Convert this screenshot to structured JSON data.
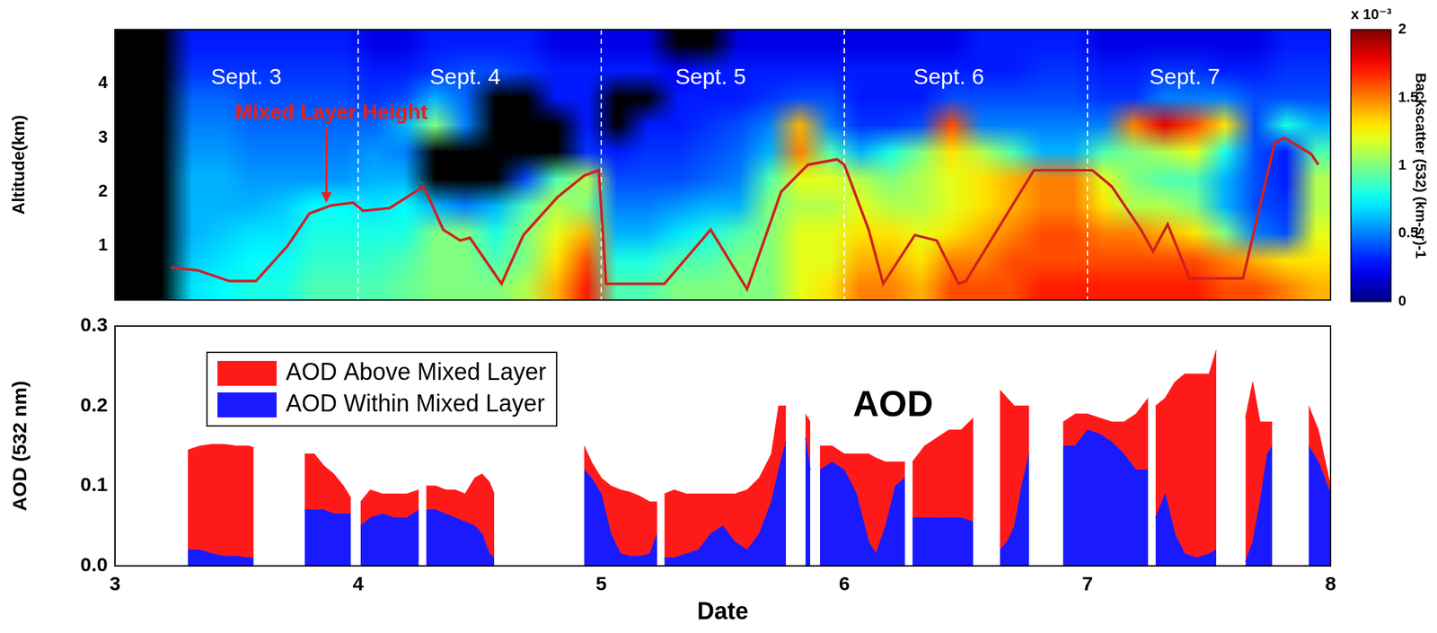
{
  "chart_data": [
    {
      "type": "heatmap",
      "y_label": "Altitude(km)",
      "xlim": [
        3,
        8
      ],
      "ylim": [
        0,
        5
      ],
      "yticks": [
        1,
        2,
        3,
        4
      ],
      "tick_labels": "y",
      "grid": false,
      "cells": [
        [
          null,
          null,
          0.3,
          0.3,
          0.3,
          0.3,
          0.3,
          0.3,
          0.2,
          0.2,
          0.3,
          0.3,
          0.3,
          0.3,
          0.2,
          0.2,
          0.2,
          0.2,
          null,
          null,
          0.2,
          0.2,
          0.2,
          0.2,
          0.2,
          0.2,
          0.2,
          0.2,
          0.3,
          0.3,
          0.3,
          0.3,
          0.2,
          0.2,
          0.2,
          0.2,
          0.2,
          0.2,
          0.3,
          0.3
        ],
        [
          null,
          null,
          0.35,
          0.35,
          0.35,
          0.35,
          0.35,
          0.35,
          0.3,
          0.3,
          0.35,
          0.4,
          0.4,
          0.35,
          0.3,
          0.3,
          0.3,
          0.3,
          0.25,
          0.3,
          0.3,
          0.3,
          0.3,
          0.3,
          0.3,
          0.3,
          0.3,
          0.3,
          0.3,
          0.3,
          0.35,
          0.35,
          0.3,
          0.3,
          0.35,
          0.35,
          0.3,
          0.3,
          0.35,
          0.35
        ],
        [
          null,
          null,
          0.45,
          0.45,
          0.4,
          0.4,
          0.4,
          0.4,
          0.35,
          0.4,
          0.6,
          0.45,
          null,
          null,
          0.3,
          0.3,
          null,
          null,
          0.3,
          0.3,
          0.3,
          0.35,
          0.4,
          0.4,
          0.3,
          0.3,
          0.3,
          0.4,
          0.4,
          0.4,
          0.4,
          0.4,
          0.35,
          0.35,
          0.5,
          0.5,
          0.5,
          0.4,
          0.4,
          0.4
        ],
        [
          null,
          null,
          0.5,
          0.5,
          0.45,
          0.45,
          0.45,
          0.45,
          0.45,
          0.6,
          1.0,
          0.5,
          null,
          null,
          null,
          0.3,
          null,
          0.3,
          0.3,
          0.35,
          0.4,
          0.5,
          1.4,
          0.5,
          0.35,
          0.35,
          0.4,
          1.6,
          0.5,
          0.5,
          0.5,
          0.5,
          0.5,
          1.5,
          1.8,
          1.6,
          1.3,
          0.4,
          0.8,
          0.6
        ],
        [
          null,
          null,
          0.55,
          0.55,
          0.5,
          0.5,
          0.5,
          0.5,
          0.55,
          0.5,
          null,
          null,
          null,
          null,
          null,
          0.35,
          0.3,
          0.35,
          0.35,
          0.4,
          0.45,
          0.6,
          1.5,
          0.9,
          0.6,
          0.8,
          1.0,
          1.3,
          1.1,
          0.9,
          0.6,
          0.6,
          0.9,
          1.0,
          1.1,
          1.2,
          0.8,
          0.4,
          0.3,
          0.9
        ],
        [
          null,
          null,
          0.6,
          0.6,
          0.55,
          0.55,
          0.55,
          0.55,
          0.6,
          0.6,
          null,
          null,
          null,
          0.4,
          0.9,
          1.1,
          0.4,
          0.4,
          0.4,
          0.45,
          0.5,
          0.9,
          1.2,
          1.2,
          1.1,
          1.0,
          1.1,
          1.2,
          1.3,
          1.4,
          1.5,
          1.5,
          1.2,
          1.0,
          0.9,
          0.9,
          0.6,
          0.4,
          0.3,
          1.1
        ],
        [
          null,
          null,
          0.6,
          0.6,
          0.6,
          0.65,
          0.75,
          0.75,
          0.7,
          0.75,
          0.6,
          0.5,
          0.6,
          0.9,
          1.1,
          1.0,
          0.5,
          0.5,
          0.55,
          0.6,
          0.6,
          1.0,
          1.1,
          1.1,
          1.2,
          1.1,
          1.1,
          1.2,
          1.3,
          1.4,
          1.5,
          1.5,
          1.3,
          1.1,
          1.1,
          1.0,
          0.6,
          0.4,
          0.35,
          1.1
        ],
        [
          null,
          null,
          0.6,
          0.65,
          0.7,
          0.7,
          0.8,
          0.8,
          0.8,
          0.8,
          1.0,
          1.0,
          0.8,
          1.0,
          1.2,
          1.4,
          0.6,
          0.6,
          0.7,
          0.8,
          0.9,
          1.0,
          1.2,
          1.2,
          1.3,
          1.3,
          1.2,
          1.3,
          1.4,
          1.5,
          1.6,
          1.6,
          1.5,
          1.5,
          1.4,
          1.3,
          1.0,
          0.5,
          0.4,
          1.2
        ],
        [
          null,
          null,
          0.65,
          0.7,
          0.75,
          0.75,
          0.85,
          0.85,
          0.85,
          0.9,
          1.0,
          1.0,
          0.9,
          1.0,
          1.3,
          1.6,
          0.8,
          0.8,
          0.9,
          0.9,
          1.0,
          1.0,
          1.2,
          1.2,
          1.4,
          1.4,
          1.3,
          1.5,
          1.5,
          1.6,
          1.6,
          1.6,
          1.6,
          1.6,
          1.6,
          1.6,
          1.5,
          1.4,
          1.3,
          1.3
        ],
        [
          null,
          null,
          0.7,
          0.75,
          0.8,
          0.8,
          0.9,
          0.9,
          0.9,
          0.95,
          1.0,
          1.0,
          1.0,
          1.1,
          1.4,
          1.7,
          0.9,
          0.9,
          1.0,
          1.0,
          1.0,
          1.0,
          1.2,
          1.3,
          1.5,
          1.5,
          1.4,
          1.6,
          1.6,
          1.6,
          1.7,
          1.7,
          1.7,
          1.7,
          1.7,
          1.7,
          1.6,
          1.6,
          1.5,
          1.4
        ]
      ],
      "colorbar": {
        "label": "Backscatter (532) (km-sr)-1",
        "multiplier": "x 10⁻³",
        "range": [
          0,
          2
        ],
        "ticks": [
          0,
          0.5,
          1,
          1.5,
          2
        ]
      },
      "day_boundaries": [
        4,
        5,
        6,
        7
      ],
      "day_labels": [
        {
          "text": "Sept. 3",
          "x": 3.54,
          "y": 4.1
        },
        {
          "text": "Sept. 4",
          "x": 4.44,
          "y": 4.1
        },
        {
          "text": "Sept. 5",
          "x": 5.45,
          "y": 4.1
        },
        {
          "text": "Sept. 6",
          "x": 6.43,
          "y": 4.1
        },
        {
          "text": "Sept. 7",
          "x": 7.4,
          "y": 4.1
        }
      ],
      "annotations": [
        {
          "text": "Mixed Layer Height",
          "x": 3.89,
          "y": 3.45,
          "arrow_to": [
            3.87,
            1.8
          ]
        }
      ],
      "series": [
        {
          "name": "Mixed Layer Height",
          "type": "line",
          "color": "#d02020",
          "x": [
            3.23,
            3.34,
            3.47,
            3.58,
            3.71,
            3.8,
            3.89,
            3.98,
            4.02,
            4.13,
            4.27,
            4.35,
            4.42,
            4.46,
            4.59,
            4.68,
            4.82,
            4.93,
            4.99,
            5.02,
            5.26,
            5.45,
            5.6,
            5.74,
            5.85,
            5.97,
            6.0,
            6.1,
            6.16,
            6.29,
            6.38,
            6.47,
            6.5,
            6.78,
            7.0,
            7.02,
            7.1,
            7.22,
            7.27,
            7.33,
            7.42,
            7.64,
            7.77,
            7.81,
            7.92,
            7.95
          ],
          "values": [
            0.6,
            0.55,
            0.35,
            0.35,
            1.0,
            1.6,
            1.75,
            1.8,
            1.65,
            1.7,
            2.1,
            1.3,
            1.1,
            1.15,
            0.3,
            1.2,
            1.9,
            2.3,
            2.4,
            0.3,
            0.3,
            1.3,
            0.2,
            2.0,
            2.5,
            2.6,
            2.5,
            1.3,
            0.3,
            1.2,
            1.1,
            0.3,
            0.35,
            2.4,
            2.4,
            2.4,
            2.1,
            1.3,
            0.9,
            1.4,
            0.4,
            0.4,
            2.9,
            3.0,
            2.7,
            2.5
          ]
        }
      ]
    },
    {
      "type": "area",
      "stacked": true,
      "x_label": "Date",
      "y_label": "AOD (532 nm)",
      "xlim": [
        3,
        8
      ],
      "xticks": [
        3,
        4,
        5,
        6,
        7,
        8
      ],
      "ylim": [
        0,
        0.3
      ],
      "yticks": [
        {
          "value": 0,
          "label": "0.0"
        },
        0.1,
        0.2,
        0.3
      ],
      "grid": false,
      "legend": "upper left",
      "annotations": [
        {
          "text": "AOD",
          "x": 6.2,
          "y": 0.2
        }
      ],
      "x": [
        3.3,
        3.35,
        3.4,
        3.45,
        3.5,
        3.55,
        3.57,
        3.6,
        3.78,
        3.82,
        3.86,
        3.9,
        3.94,
        3.97,
        3.99,
        4.01,
        4.05,
        4.1,
        4.15,
        4.2,
        4.25,
        4.265,
        4.28,
        4.32,
        4.36,
        4.4,
        4.44,
        4.48,
        4.51,
        4.54,
        4.56,
        4.58,
        4.93,
        4.96,
        5.0,
        5.04,
        5.08,
        5.12,
        5.16,
        5.2,
        5.23,
        5.245,
        5.26,
        5.3,
        5.35,
        5.4,
        5.45,
        5.5,
        5.55,
        5.6,
        5.65,
        5.7,
        5.73,
        5.76,
        5.78,
        5.84,
        5.86,
        5.875,
        5.9,
        5.95,
        6.0,
        6.05,
        6.1,
        6.13,
        6.17,
        6.21,
        6.25,
        6.265,
        6.28,
        6.33,
        6.38,
        6.43,
        6.48,
        6.53,
        6.58,
        6.64,
        6.67,
        6.7,
        6.73,
        6.76,
        6.8,
        6.9,
        6.95,
        7.0,
        7.05,
        7.1,
        7.15,
        7.2,
        7.25,
        7.265,
        7.28,
        7.32,
        7.36,
        7.4,
        7.45,
        7.5,
        7.53,
        7.56,
        7.65,
        7.68,
        7.71,
        7.74,
        7.76,
        7.8,
        7.91,
        7.95,
        8.0
      ],
      "series": [
        {
          "name": "AOD Within Mixed Layer",
          "color": "#1a1aff",
          "values": [
            0.02,
            0.02,
            0.015,
            0.012,
            0.012,
            0.01,
            0.01,
            null,
            0.07,
            0.07,
            0.07,
            0.065,
            0.065,
            0.065,
            null,
            0.05,
            0.06,
            0.065,
            0.06,
            0.06,
            0.07,
            null,
            0.07,
            0.07,
            0.065,
            0.06,
            0.055,
            0.05,
            0.04,
            0.015,
            0.01,
            null,
            0.12,
            0.11,
            0.09,
            0.04,
            0.015,
            0.012,
            0.012,
            0.015,
            0.04,
            null,
            0.01,
            0.01,
            0.015,
            0.02,
            0.04,
            0.05,
            0.03,
            0.02,
            0.04,
            0.08,
            0.12,
            0.155,
            null,
            0.16,
            0.12,
            null,
            0.12,
            0.13,
            0.12,
            0.09,
            0.03,
            0.015,
            0.05,
            0.1,
            0.11,
            null,
            0.06,
            0.06,
            0.06,
            0.06,
            0.06,
            0.055,
            null,
            0.02,
            0.03,
            0.05,
            0.1,
            0.14,
            null,
            0.15,
            0.15,
            0.17,
            0.165,
            0.155,
            0.14,
            0.12,
            0.12,
            null,
            0.06,
            0.09,
            0.04,
            0.015,
            0.01,
            0.015,
            0.02,
            null,
            0.005,
            0.03,
            0.08,
            0.14,
            0.15,
            null,
            0.15,
            0.13,
            0.09
          ]
        },
        {
          "name": "AOD Above Mixed Layer",
          "color": "#ff1a1a",
          "values": [
            0.125,
            0.13,
            0.137,
            0.14,
            0.138,
            0.14,
            0.138,
            null,
            0.07,
            0.07,
            0.055,
            0.05,
            0.035,
            0.02,
            null,
            0.03,
            0.035,
            0.025,
            0.03,
            0.03,
            0.025,
            null,
            0.03,
            0.03,
            0.03,
            0.035,
            0.035,
            0.06,
            0.075,
            0.09,
            0.08,
            null,
            0.03,
            0.02,
            0.02,
            0.06,
            0.08,
            0.08,
            0.075,
            0.065,
            0.04,
            null,
            0.08,
            0.085,
            0.075,
            0.07,
            0.05,
            0.04,
            0.06,
            0.075,
            0.07,
            0.06,
            0.08,
            0.045,
            null,
            0.03,
            0.06,
            null,
            0.03,
            0.02,
            0.02,
            0.05,
            0.11,
            0.12,
            0.08,
            0.03,
            0.02,
            null,
            0.07,
            0.09,
            0.1,
            0.11,
            0.11,
            0.13,
            null,
            0.2,
            0.18,
            0.15,
            0.1,
            0.06,
            null,
            0.03,
            0.04,
            0.02,
            0.02,
            0.025,
            0.04,
            0.07,
            0.09,
            null,
            0.14,
            0.12,
            0.19,
            0.225,
            0.23,
            0.225,
            0.25,
            null,
            0.18,
            0.2,
            0.1,
            0.04,
            0.03,
            null,
            0.05,
            0.04,
            0.01
          ]
        }
      ]
    }
  ]
}
